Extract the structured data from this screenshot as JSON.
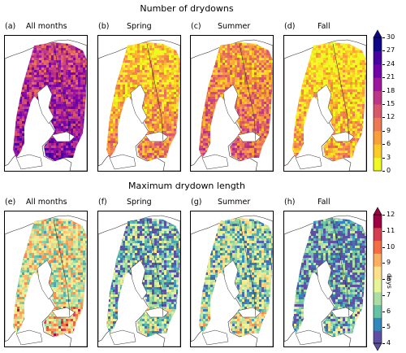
{
  "row1": {
    "title": "Number of drydowns",
    "panels": [
      {
        "letter": "(a)",
        "name": "All months",
        "palette": "plasma",
        "level": 0.62
      },
      {
        "letter": "(b)",
        "name": "Spring",
        "palette": "plasma",
        "level": 0.2
      },
      {
        "letter": "(c)",
        "name": "Summer",
        "palette": "plasma",
        "level": 0.32
      },
      {
        "letter": "(d)",
        "name": "Fall",
        "palette": "plasma",
        "level": 0.12
      }
    ],
    "colorbar": {
      "min": 0,
      "max": 30,
      "extend": "max",
      "ticks": [
        "30",
        "27",
        "24",
        "21",
        "18",
        "15",
        "12",
        "9",
        "6",
        "3",
        "0"
      ],
      "colors": [
        "#f0f921",
        "#fdca26",
        "#fb9f3a",
        "#ed7953",
        "#d8576b",
        "#bd3786",
        "#9c179e",
        "#7201a8",
        "#46039f",
        "#0d0887"
      ]
    }
  },
  "row2": {
    "title": "Maximum drydown length",
    "panels": [
      {
        "letter": "(e)",
        "name": "All months",
        "palette": "spectral",
        "level": 0.45
      },
      {
        "letter": "(f)",
        "name": "Spring",
        "palette": "spectral",
        "level": 0.22
      },
      {
        "letter": "(g)",
        "name": "Summer",
        "palette": "spectral",
        "level": 0.32
      },
      {
        "letter": "(h)",
        "name": "Fall",
        "palette": "spectral",
        "level": 0.12
      }
    ],
    "colorbar": {
      "min": 4,
      "max": 12,
      "extend": "both",
      "unit": "days",
      "ticks": [
        "12",
        "11",
        "10",
        "9",
        "8",
        "7",
        "6",
        "5",
        "4"
      ],
      "colors": [
        "#5e4fa2",
        "#3288bd",
        "#66c2a5",
        "#abdda4",
        "#e6f598",
        "#fee08b",
        "#fdae61",
        "#f46d43",
        "#d53e4f",
        "#9e0142"
      ]
    }
  }
}
